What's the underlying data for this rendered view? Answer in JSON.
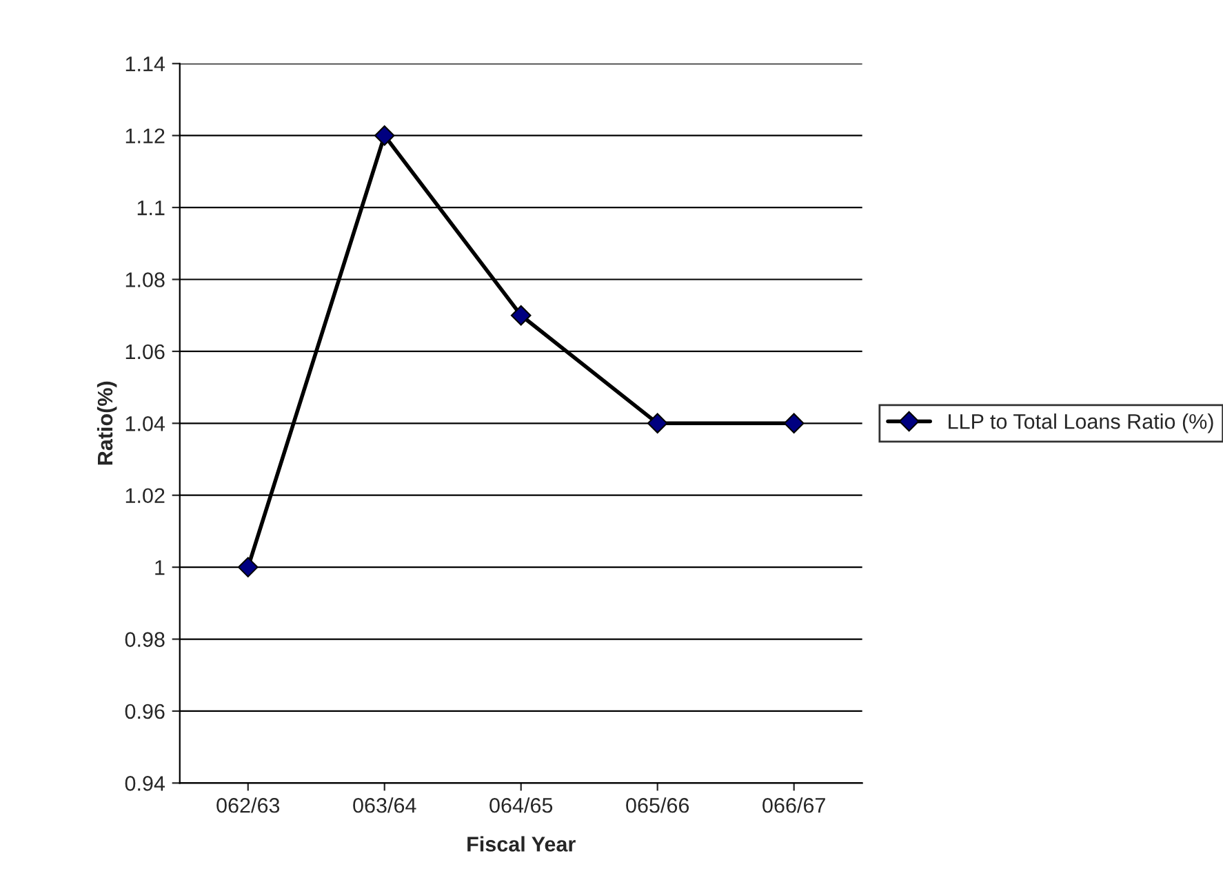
{
  "chart_data": {
    "type": "line",
    "xlabel": "Fiscal Year",
    "ylabel": "Ratio(%)",
    "categories": [
      "062/63",
      "063/64",
      "064/65",
      "065/66",
      "066/67"
    ],
    "series": [
      {
        "name": "LLP to Total Loans Ratio (%)",
        "color": "#000000",
        "values": [
          1,
          1.12,
          1.07,
          1.04,
          1.04
        ]
      }
    ],
    "ylim": [
      0.94,
      1.14
    ],
    "yticks": [
      0.94,
      0.96,
      0.98,
      1,
      1.02,
      1.04,
      1.06,
      1.08,
      1.1,
      1.12,
      1.14
    ],
    "grid": "y",
    "legend": "right",
    "marker": "diamond",
    "line_style": "solid"
  }
}
